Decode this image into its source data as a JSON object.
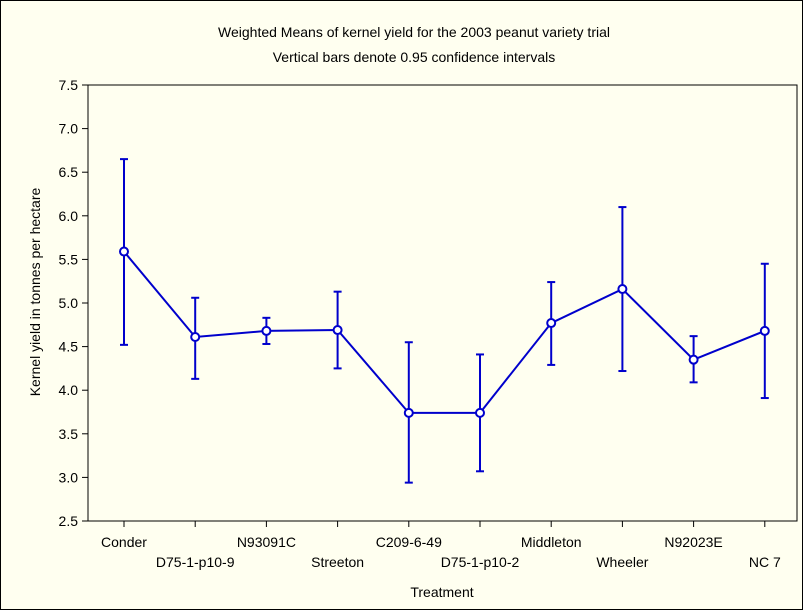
{
  "chart_data": {
    "type": "line",
    "title": "Weighted Means of kernel yield for the 2003  peanut variety trial",
    "subtitle": "Vertical bars denote 0.95 confidence intervals",
    "xlabel": "Treatment",
    "ylabel": "Kernel yield in tonnes per hectare",
    "ylim": [
      2.5,
      7.5
    ],
    "yticks": [
      "2.5",
      "3.0",
      "3.5",
      "4.0",
      "4.5",
      "5.0",
      "5.5",
      "6.0",
      "6.5",
      "7.0",
      "7.5"
    ],
    "categories": [
      "Conder",
      "D75-1-p10-9",
      "N93091C",
      "Streeton",
      "C209-6-49",
      "D75-1-p10-2",
      "Middleton",
      "Wheeler",
      "N92023E",
      "NC 7"
    ],
    "series": [
      {
        "values": [
          5.59,
          4.61,
          4.68,
          4.69,
          3.74,
          3.74,
          4.77,
          5.16,
          4.35,
          4.68
        ],
        "lower": [
          4.52,
          4.13,
          4.53,
          4.25,
          2.94,
          3.07,
          4.29,
          4.22,
          4.09,
          3.91
        ],
        "upper": [
          6.65,
          5.06,
          4.83,
          5.13,
          4.55,
          4.41,
          5.24,
          6.1,
          4.62,
          5.45
        ]
      }
    ],
    "grid": false,
    "legend": "none",
    "colors": {
      "series": "#0000cc",
      "background": "#fffff0",
      "frame": "#000000"
    }
  }
}
